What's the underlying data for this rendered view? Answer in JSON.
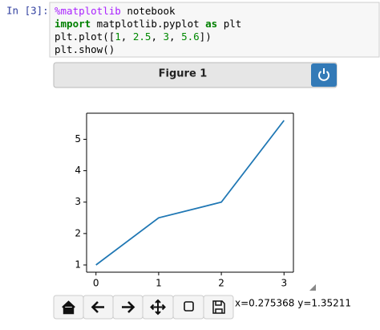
{
  "cell": {
    "prompt": "In [3]:",
    "code": [
      [
        {
          "text": "%matplotlib",
          "color": "#aa22ff",
          "bold": false
        },
        {
          "text": " notebook",
          "color": "#000000",
          "bold": false
        }
      ],
      [
        {
          "text": "import",
          "color": "#008000",
          "bold": true
        },
        {
          "text": " matplotlib.pyplot ",
          "color": "#000000",
          "bold": false
        },
        {
          "text": "as",
          "color": "#008000",
          "bold": true
        },
        {
          "text": " plt",
          "color": "#000000",
          "bold": false
        }
      ],
      [
        {
          "text": "plt.plot([",
          "color": "#000000",
          "bold": false
        },
        {
          "text": "1",
          "color": "#008800",
          "bold": false
        },
        {
          "text": ", ",
          "color": "#000000",
          "bold": false
        },
        {
          "text": "2.5",
          "color": "#008800",
          "bold": false
        },
        {
          "text": ", ",
          "color": "#000000",
          "bold": false
        },
        {
          "text": "3",
          "color": "#008800",
          "bold": false
        },
        {
          "text": ", ",
          "color": "#000000",
          "bold": false
        },
        {
          "text": "5.6",
          "color": "#008800",
          "bold": false
        },
        {
          "text": "])",
          "color": "#000000",
          "bold": false
        }
      ],
      [
        {
          "text": "plt.show()",
          "color": "#000000",
          "bold": false
        }
      ]
    ]
  },
  "figure": {
    "title": "Figure 1",
    "status": "x=0.275368 y=1.35211"
  },
  "chart_data": {
    "type": "line",
    "x": [
      0,
      1,
      2,
      3
    ],
    "series": [
      {
        "values": [
          1,
          2.5,
          3,
          5.6
        ],
        "color": "#1f77b4"
      }
    ],
    "xlim": [
      -0.15,
      3.15
    ],
    "ylim": [
      0.77,
      5.83
    ],
    "xticks": [
      0,
      1,
      2,
      3
    ],
    "yticks": [
      1,
      2,
      3,
      4,
      5
    ],
    "grid": false
  }
}
